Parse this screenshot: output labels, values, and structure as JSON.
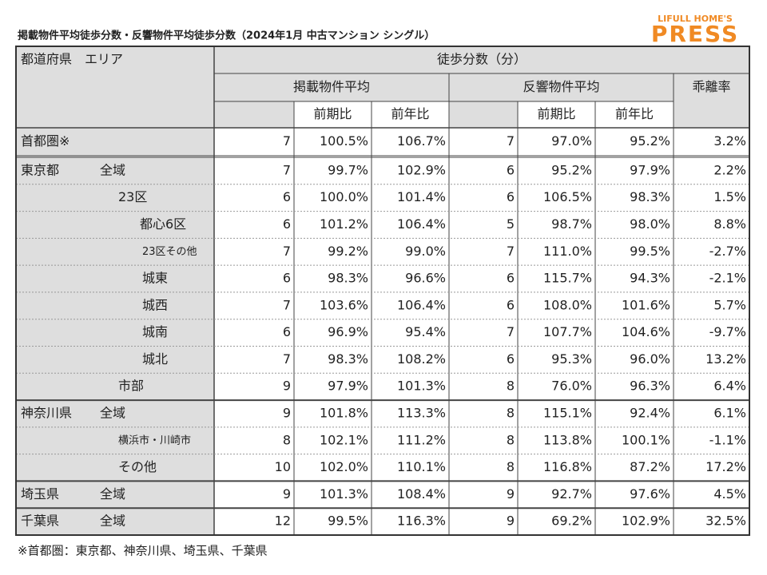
{
  "header": {
    "title": "掲載物件平均徒歩分数・反響物件平均徒歩分数（2024年1月 中古マンション シングル）",
    "logo_top": "LIFULL HOME'S",
    "logo_main": "PRESS"
  },
  "table": {
    "columns": {
      "region": "都道府県　エリア",
      "walk": "徒歩分数（分）",
      "listed": "掲載物件平均",
      "inquired": "反響物件平均",
      "gap": "乖離率",
      "prev_period": "前期比",
      "prev_year": "前年比"
    },
    "groups": [
      {
        "prefecture": "首都圏※",
        "rows": [
          {
            "values": [
              7,
              "100.5%",
              "106.7%",
              7,
              "97.0%",
              "95.2%",
              "3.2%"
            ]
          }
        ]
      },
      {
        "prefecture": "東京都",
        "rows": [
          {
            "area": "全域",
            "values": [
              7,
              "99.7%",
              "102.9%",
              6,
              "95.2%",
              "97.9%",
              "2.2%"
            ]
          },
          {
            "area": "23区",
            "values": [
              6,
              "100.0%",
              "101.4%",
              6,
              "106.5%",
              "98.3%",
              "1.5%"
            ]
          },
          {
            "area": "都心6区",
            "values": [
              6,
              "101.2%",
              "106.4%",
              5,
              "98.7%",
              "98.0%",
              "8.8%"
            ]
          },
          {
            "area": "23区その他",
            "values": [
              7,
              "99.2%",
              "99.0%",
              7,
              "111.0%",
              "99.5%",
              "-2.7%"
            ]
          },
          {
            "area": "城東",
            "values": [
              6,
              "98.3%",
              "96.6%",
              6,
              "115.7%",
              "94.3%",
              "-2.1%"
            ]
          },
          {
            "area": "城西",
            "values": [
              7,
              "103.6%",
              "106.4%",
              6,
              "108.0%",
              "101.6%",
              "5.7%"
            ]
          },
          {
            "area": "城南",
            "values": [
              6,
              "96.9%",
              "95.4%",
              7,
              "107.7%",
              "104.6%",
              "-9.7%"
            ]
          },
          {
            "area": "城北",
            "values": [
              7,
              "98.3%",
              "108.2%",
              6,
              "95.3%",
              "96.0%",
              "13.2%"
            ]
          },
          {
            "area": "市部",
            "values": [
              9,
              "97.9%",
              "101.3%",
              8,
              "76.0%",
              "96.3%",
              "6.4%"
            ]
          }
        ]
      },
      {
        "prefecture": "神奈川県",
        "rows": [
          {
            "area": "全域",
            "values": [
              9,
              "101.8%",
              "113.3%",
              8,
              "115.1%",
              "92.4%",
              "6.1%"
            ]
          },
          {
            "area": "横浜市・川崎市",
            "values": [
              8,
              "102.1%",
              "111.2%",
              8,
              "113.8%",
              "100.1%",
              "-1.1%"
            ]
          },
          {
            "area": "その他",
            "values": [
              10,
              "102.0%",
              "110.1%",
              8,
              "116.8%",
              "87.2%",
              "17.2%"
            ]
          }
        ]
      },
      {
        "prefecture": "埼玉県",
        "rows": [
          {
            "area": "全域",
            "values": [
              9,
              "101.3%",
              "108.4%",
              9,
              "92.7%",
              "97.6%",
              "4.5%"
            ]
          }
        ]
      },
      {
        "prefecture": "千葉県",
        "rows": [
          {
            "area": "全域",
            "values": [
              12,
              "99.5%",
              "116.3%",
              9,
              "69.2%",
              "102.9%",
              "32.5%"
            ]
          }
        ]
      }
    ]
  },
  "footnote": "※首都圏：東京都、神奈川県、埼玉県、千葉県"
}
